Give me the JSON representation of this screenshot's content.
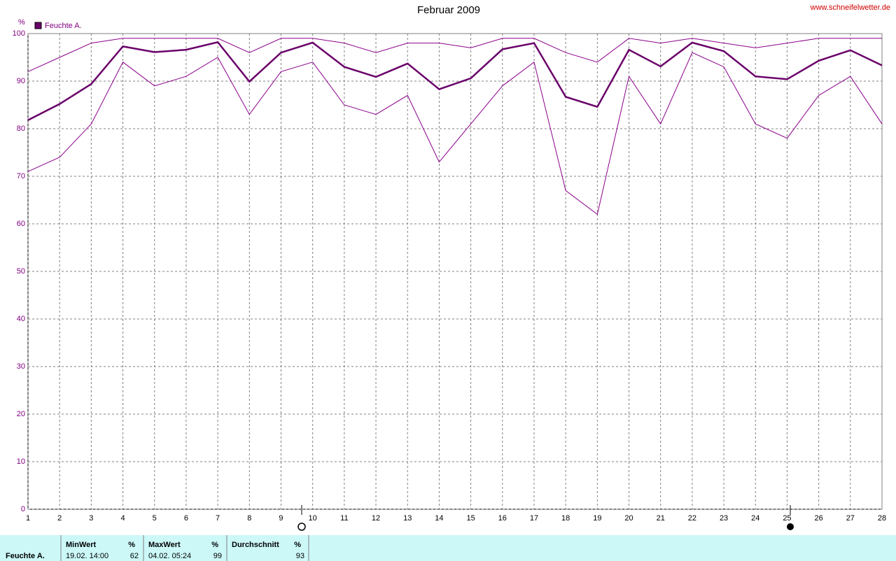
{
  "chart_data": {
    "type": "line",
    "title": "Februar 2009",
    "source": "www.schneifelwetter.de",
    "y_label": "%",
    "legend": "top-left",
    "grid": true,
    "x": [
      1,
      2,
      3,
      4,
      5,
      6,
      7,
      8,
      9,
      10,
      11,
      12,
      13,
      14,
      15,
      16,
      17,
      18,
      19,
      20,
      21,
      22,
      23,
      24,
      25,
      26,
      27,
      28
    ],
    "xlim": [
      1,
      28
    ],
    "xticks": [
      1,
      2,
      3,
      4,
      5,
      6,
      7,
      8,
      9,
      10,
      11,
      12,
      13,
      14,
      15,
      16,
      17,
      18,
      19,
      20,
      21,
      22,
      23,
      24,
      25,
      26,
      27,
      28
    ],
    "ylim": [
      0,
      100
    ],
    "yticks": [
      0,
      10,
      20,
      30,
      40,
      50,
      60,
      70,
      80,
      90,
      100
    ],
    "series": [
      {
        "name": "Feuchte A.",
        "color": "#6a006a",
        "values": [
          81.8,
          85.2,
          89.4,
          97.3,
          96.1,
          96.6,
          98.2,
          89.9,
          96,
          98.1,
          93,
          90.9,
          93.7,
          88.3,
          90.6,
          96.7,
          98,
          86.7,
          84.6,
          96.6,
          93.1,
          98.1,
          96.3,
          91,
          90.4,
          94.3,
          96.5,
          93.3
        ]
      },
      {
        "color": "#8b008b",
        "values": [
          92,
          95,
          98,
          99,
          99,
          99,
          99,
          96,
          99,
          99,
          98,
          96,
          98,
          98,
          97,
          99,
          99,
          96,
          94,
          99,
          98,
          99,
          98,
          97,
          98,
          99,
          99,
          99
        ]
      },
      {
        "color": "#8b008b",
        "values": [
          71,
          74,
          81,
          94,
          89,
          91,
          95,
          83,
          92,
          94,
          85,
          83,
          87,
          73,
          81,
          89,
          94,
          67,
          62,
          91,
          81,
          96,
          93,
          81,
          78,
          87,
          91,
          81
        ]
      }
    ]
  },
  "summary": {
    "row_label": "Feuchte A.",
    "columns": [
      {
        "label": "MinWert",
        "unit": "%",
        "time": "19.02. 14:00",
        "value": 62
      },
      {
        "label": "MaxWert",
        "unit": "%",
        "time": "04.02. 05:24",
        "value": 99
      },
      {
        "label": "Durchschnitt",
        "unit": "%",
        "value": 93
      }
    ]
  }
}
